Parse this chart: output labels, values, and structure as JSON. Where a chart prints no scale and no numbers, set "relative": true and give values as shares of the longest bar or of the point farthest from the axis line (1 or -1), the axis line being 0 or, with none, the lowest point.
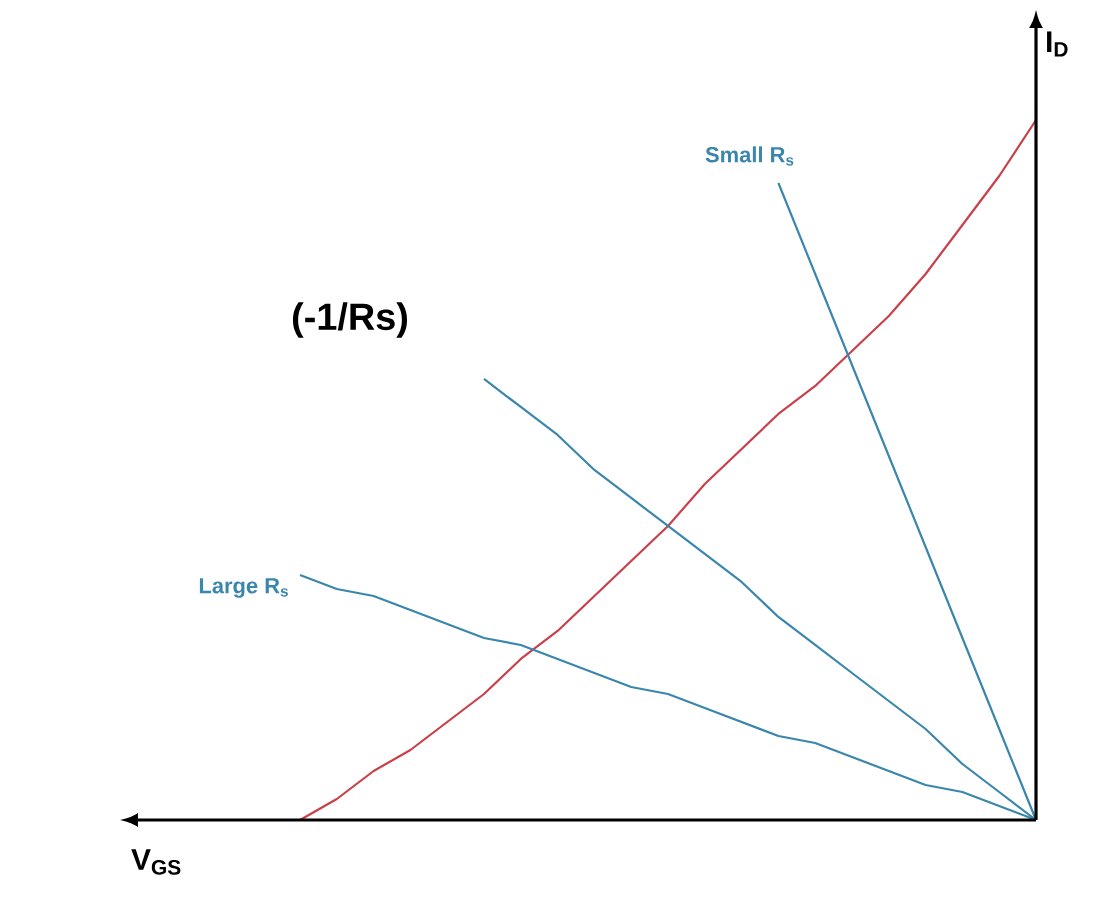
{
  "chart_data": {
    "type": "line",
    "relative": true,
    "xlabel": "V$_{GS}$",
    "ylabel": "I$_{D}$",
    "annotations": [
      "(-1/Rs)"
    ],
    "categories": [
      null,
      null,
      null,
      null,
      null,
      null,
      null,
      null,
      null,
      null,
      null,
      null,
      null,
      null,
      null,
      null,
      null,
      null,
      null,
      null,
      null
    ],
    "series": [
      {
        "color": "#c8404a",
        "values": [
          0,
          0.03,
          0.07,
          0.1,
          0.14,
          0.18,
          0.23,
          0.27,
          0.32,
          0.37,
          0.42,
          0.48,
          0.53,
          0.58,
          0.62,
          0.67,
          0.72,
          0.78,
          0.85,
          0.92,
          1.0
        ]
      },
      {
        "name": "Small R$_{s}$",
        "color": "#3a86ac",
        "values": [
          null,
          null,
          null,
          null,
          null,
          null,
          null,
          null,
          null,
          null,
          null,
          null,
          null,
          0.91,
          0.78,
          0.65,
          0.52,
          0.39,
          0.26,
          0.13,
          0
        ]
      },
      {
        "color": "#3a86ac",
        "values": [
          null,
          null,
          null,
          null,
          null,
          0.63,
          0.59,
          0.55,
          0.5,
          0.46,
          0.42,
          0.38,
          0.34,
          0.29,
          0.25,
          0.21,
          0.17,
          0.13,
          0.08,
          0.04,
          0
        ]
      },
      {
        "name": "Large R$_{s}$",
        "color": "#3a86ac",
        "values": [
          0.35,
          0.33,
          0.32,
          0.3,
          0.28,
          0.26,
          0.25,
          0.23,
          0.21,
          0.19,
          0.18,
          0.16,
          0.14,
          0.12,
          0.11,
          0.09,
          0.07,
          0.05,
          0.04,
          0.02,
          0
        ]
      }
    ]
  }
}
